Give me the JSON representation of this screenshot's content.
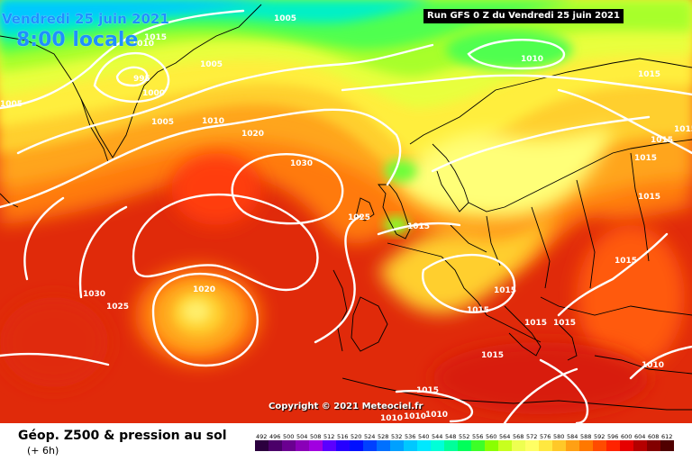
{
  "header": {
    "date_line": "Vendredi 25 juin 2021",
    "time_line": "8:00 locale",
    "run_info": "Run GFS 0 Z du Vendredi 25 juin 2021"
  },
  "copyright": "Copyright © 2021 Meteociel.fr",
  "footer": {
    "title": "Géop. Z500 & pression au sol",
    "lead_time": "(+ 6h)"
  },
  "isobar_labels": [
    "1005",
    "1015",
    "1010",
    "1005",
    "995",
    "1000",
    "1005",
    "1005",
    "1010",
    "1020",
    "1030",
    "1025",
    "1015",
    "1010",
    "1015",
    "1015",
    "1015",
    "1015",
    "1015",
    "1030",
    "1025",
    "1020",
    "1015",
    "1015",
    "1015",
    "1015",
    "1015",
    "1015",
    "1010",
    "1015",
    "1010",
    "1010",
    "1010"
  ],
  "scale": {
    "values": [
      "492",
      "496",
      "500",
      "504",
      "508",
      "512",
      "516",
      "520",
      "524",
      "528",
      "532",
      "536",
      "540",
      "544",
      "548",
      "552",
      "556",
      "560",
      "564",
      "568",
      "572",
      "576",
      "580",
      "584",
      "588",
      "592",
      "596",
      "600",
      "604",
      "608",
      "612"
    ],
    "colors": [
      "#2b003e",
      "#4b0069",
      "#6a0090",
      "#8a00b8",
      "#a100e0",
      "#5a00ff",
      "#2600ff",
      "#0010ff",
      "#0040ff",
      "#0070ff",
      "#00a0ff",
      "#00c8ff",
      "#00e8ff",
      "#00ffd8",
      "#00ff9a",
      "#00ff5a",
      "#3cff28",
      "#8aff00",
      "#c8ff1e",
      "#eeff50",
      "#ffff64",
      "#ffe840",
      "#ffc828",
      "#ffa014",
      "#ff7800",
      "#ff4b00",
      "#ff2300",
      "#e60000",
      "#b40000",
      "#820000",
      "#500000"
    ]
  },
  "icons": {
    "map": "weather-map",
    "logo": "none"
  }
}
